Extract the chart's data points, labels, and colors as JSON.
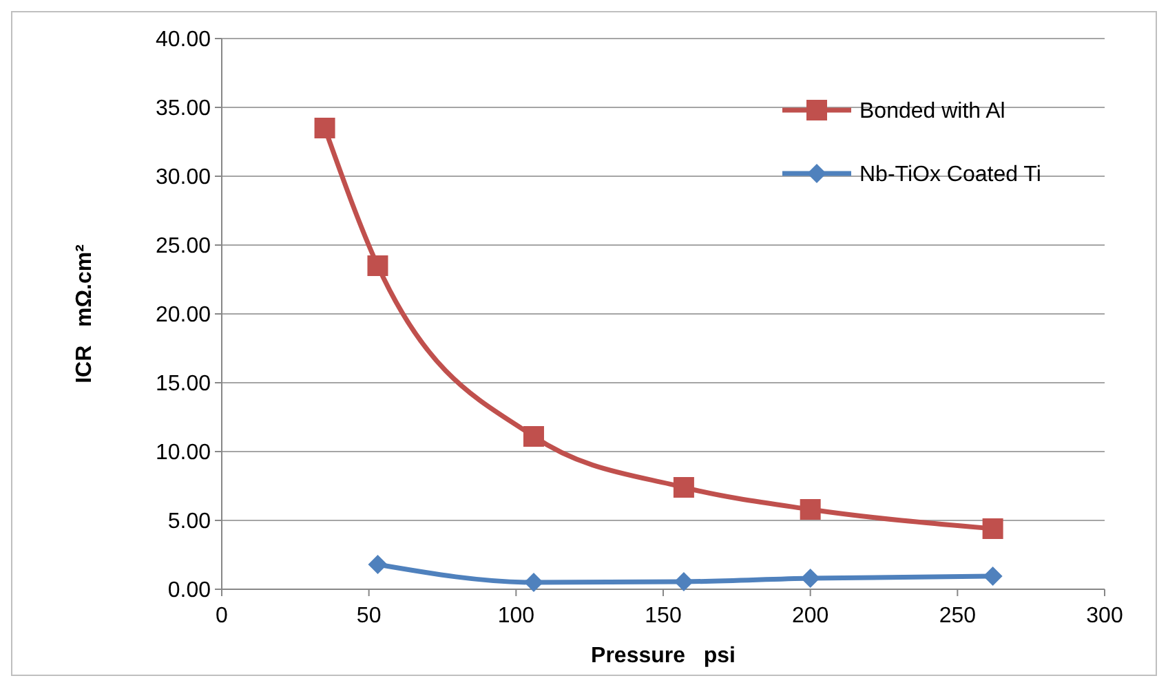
{
  "chart_data": {
    "type": "line",
    "xlabel": "Pressure   psi",
    "ylabel": "ICR   mΩ.cm²",
    "series": [
      {
        "name": "Bonded with Al",
        "color": "#c0504d",
        "marker": "square",
        "x": [
          35,
          53,
          106,
          157,
          200,
          262
        ],
        "values": [
          33.5,
          23.5,
          11.1,
          7.4,
          5.8,
          4.4
        ]
      },
      {
        "name": "Nb-TiOx Coated Ti",
        "color": "#4f81bd",
        "marker": "diamond",
        "x": [
          53,
          106,
          157,
          200,
          262
        ],
        "values": [
          1.8,
          0.5,
          0.55,
          0.8,
          0.95
        ]
      }
    ],
    "xlim": [
      0,
      300
    ],
    "xticks": [
      0,
      50,
      100,
      150,
      200,
      250,
      300
    ],
    "ylim": [
      0,
      40
    ],
    "yticks": [
      {
        "value": 0,
        "label": "0.00"
      },
      {
        "value": 5,
        "label": "5.00"
      },
      {
        "value": 10,
        "label": "10.00"
      },
      {
        "value": 15,
        "label": "15.00"
      },
      {
        "value": 20,
        "label": "20.00"
      },
      {
        "value": 25,
        "label": "25.00"
      },
      {
        "value": 30,
        "label": "30.00"
      },
      {
        "value": 35,
        "label": "35.00"
      },
      {
        "value": 40,
        "label": "40.00"
      }
    ],
    "grid": "y",
    "legend": "top right"
  }
}
